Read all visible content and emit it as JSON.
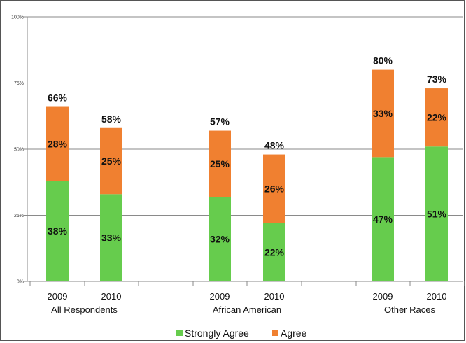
{
  "chart_data": {
    "type": "bar",
    "stacked": true,
    "groups": [
      {
        "name": "All Respondents",
        "categories": [
          "2009",
          "2010"
        ]
      },
      {
        "name": "African American",
        "categories": [
          "2009",
          "2010"
        ]
      },
      {
        "name": "Other Races",
        "categories": [
          "2009",
          "2010"
        ]
      }
    ],
    "series": [
      {
        "name": "Strongly Agree",
        "color": "#66cc4d",
        "values": [
          38,
          33,
          32,
          22,
          47,
          51
        ],
        "labels": [
          "38%",
          "33%",
          "32%",
          "22%",
          "47%",
          "51%"
        ]
      },
      {
        "name": "Agree",
        "color": "#f08030",
        "values": [
          28,
          25,
          25,
          26,
          33,
          22
        ],
        "labels": [
          "28%",
          "25%",
          "25%",
          "26%",
          "33%",
          "22%"
        ]
      }
    ],
    "totals": [
      66,
      58,
      57,
      48,
      80,
      73
    ],
    "total_labels": [
      "66%",
      "58%",
      "57%",
      "48%",
      "80%",
      "73%"
    ],
    "y_ticks": [
      "0%",
      "25%",
      "50%",
      "75%",
      "100%"
    ],
    "ylim": [
      0,
      100
    ],
    "grid": true,
    "legend_position": "bottom"
  }
}
